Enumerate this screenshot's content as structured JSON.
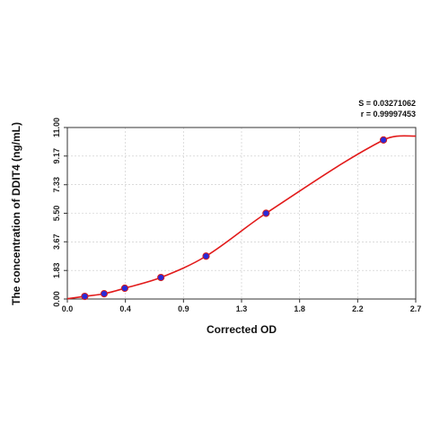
{
  "chart_data": {
    "type": "scatter",
    "xlabel": "Corrected OD",
    "ylabel": "The concentration of DDIT4 (ng/mL)",
    "xlim": [
      0.0,
      2.7
    ],
    "ylim": [
      0.0,
      11.0
    ],
    "x_ticks": [
      "0.0",
      "0.4",
      "0.9",
      "1.3",
      "1.8",
      "2.2",
      "2.7"
    ],
    "x_tick_values": [
      0.0,
      0.45,
      0.9,
      1.35,
      1.8,
      2.25,
      2.7
    ],
    "y_ticks": [
      "0.00",
      "1.83",
      "3.67",
      "5.50",
      "7.33",
      "9.17",
      "11.00"
    ],
    "y_tick_values": [
      0.0,
      1.83,
      3.67,
      5.5,
      7.33,
      9.17,
      11.0
    ],
    "grid": true,
    "stats": [
      "S = 0.03271062",
      "r = 0.99997453"
    ],
    "series": [
      {
        "points": [
          {
            "x": 0.135,
            "y": 0.17
          },
          {
            "x": 0.285,
            "y": 0.34
          },
          {
            "x": 0.445,
            "y": 0.69
          },
          {
            "x": 0.725,
            "y": 1.38
          },
          {
            "x": 1.075,
            "y": 2.75
          },
          {
            "x": 1.54,
            "y": 5.5
          },
          {
            "x": 2.45,
            "y": 10.2
          }
        ],
        "marker_color": "#2a2ad8",
        "marker_edge": "#d61f1f",
        "fit_color": "#e21b1b"
      }
    ]
  }
}
